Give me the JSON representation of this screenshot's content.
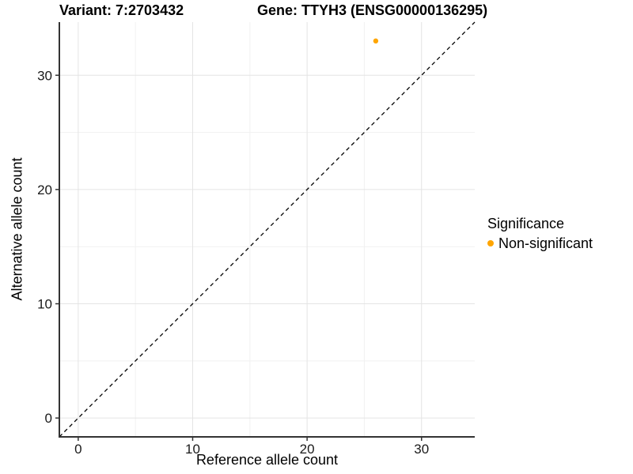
{
  "chart_data": {
    "type": "scatter",
    "title": "Variant: 7:2703432",
    "subtitle": "Gene: TTYH3 (ENSG00000136295)",
    "xlabel": "Reference allele count",
    "ylabel": "Alternative allele count",
    "xlim": [
      -1.65,
      34.65
    ],
    "ylim": [
      -1.65,
      34.65
    ],
    "x_ticks": [
      0,
      10,
      20,
      30
    ],
    "y_ticks": [
      0,
      10,
      20,
      30
    ],
    "x_minor_ticks": [
      5,
      15,
      25
    ],
    "y_minor_ticks": [
      5,
      15,
      25
    ],
    "grid": "major+minor",
    "legend_position": "right",
    "points": [
      {
        "x": 26,
        "y": 33,
        "series": "Non-significant",
        "color": "#FFA500",
        "radius_px": 3.2
      }
    ],
    "reference_line": {
      "slope": 1,
      "intercept": 0,
      "style": "dashed",
      "color": "#000000"
    },
    "legend": {
      "title": "Significance",
      "items": [
        {
          "label": "Non-significant",
          "color": "#FFA500"
        }
      ]
    },
    "colors": {
      "axis": "#333333",
      "grid_major": "#E4E4E4",
      "grid_minor": "#F1F1F1",
      "tick_label": "#1A1A1A",
      "background": "#FFFFFF"
    }
  }
}
